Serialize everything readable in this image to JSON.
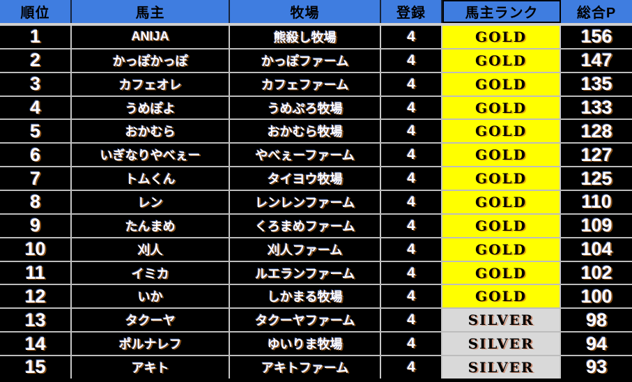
{
  "table": {
    "headers": [
      {
        "key": "rank",
        "label": "順位"
      },
      {
        "key": "owner",
        "label": "馬主"
      },
      {
        "key": "farm",
        "label": "牧場"
      },
      {
        "key": "registered",
        "label": "登録"
      },
      {
        "key": "owner_rank",
        "label": "馬主ランク"
      },
      {
        "key": "total_points",
        "label": "総合P"
      }
    ],
    "rows": [
      {
        "rank": "1",
        "owner": "ANIJA",
        "farm": "熊殺し牧場",
        "registered": "4",
        "owner_rank": "GOLD",
        "total_points": "156"
      },
      {
        "rank": "2",
        "owner": "かっぽかっぽ",
        "farm": "かっぽファーム",
        "registered": "4",
        "owner_rank": "GOLD",
        "total_points": "147"
      },
      {
        "rank": "3",
        "owner": "カフェオレ",
        "farm": "カフェファーム",
        "registered": "4",
        "owner_rank": "GOLD",
        "total_points": "135"
      },
      {
        "rank": "4",
        "owner": "うめぽよ",
        "farm": "うめぷろ牧場",
        "registered": "4",
        "owner_rank": "GOLD",
        "total_points": "133"
      },
      {
        "rank": "5",
        "owner": "おかむら",
        "farm": "おかむら牧場",
        "registered": "4",
        "owner_rank": "GOLD",
        "total_points": "128"
      },
      {
        "rank": "6",
        "owner": "いぎなりやべぇー",
        "farm": "やべぇーファーム",
        "registered": "4",
        "owner_rank": "GOLD",
        "total_points": "127"
      },
      {
        "rank": "7",
        "owner": "トムくん",
        "farm": "タイヨウ牧場",
        "registered": "4",
        "owner_rank": "GOLD",
        "total_points": "125"
      },
      {
        "rank": "8",
        "owner": "レン",
        "farm": "レンレンファーム",
        "registered": "4",
        "owner_rank": "GOLD",
        "total_points": "110"
      },
      {
        "rank": "9",
        "owner": "たんまめ",
        "farm": "くろまめファーム",
        "registered": "4",
        "owner_rank": "GOLD",
        "total_points": "109"
      },
      {
        "rank": "10",
        "owner": "刈人",
        "farm": "刈人ファーム",
        "registered": "4",
        "owner_rank": "GOLD",
        "total_points": "104"
      },
      {
        "rank": "11",
        "owner": "イミカ",
        "farm": "ルエランファーム",
        "registered": "4",
        "owner_rank": "GOLD",
        "total_points": "102"
      },
      {
        "rank": "12",
        "owner": "いか",
        "farm": "しかまる牧場",
        "registered": "4",
        "owner_rank": "GOLD",
        "total_points": "100"
      },
      {
        "rank": "13",
        "owner": "タクーヤ",
        "farm": "タクーヤファーム",
        "registered": "4",
        "owner_rank": "SILVER",
        "total_points": "98"
      },
      {
        "rank": "14",
        "owner": "ポルナレフ",
        "farm": "ゆいりま牧場",
        "registered": "4",
        "owner_rank": "SILVER",
        "total_points": "94"
      },
      {
        "rank": "15",
        "owner": "アキト",
        "farm": "アキトファーム",
        "registered": "4",
        "owner_rank": "SILVER",
        "total_points": "93"
      }
    ]
  },
  "colors": {
    "header_bg": "#3f7de0",
    "row_bg": "#000000",
    "gold_bg": "#ffff00",
    "silver_bg": "#d9d9d9",
    "grid_line": "#c8c8c8",
    "text_light": "#ffffff",
    "text_dark": "#000000"
  }
}
